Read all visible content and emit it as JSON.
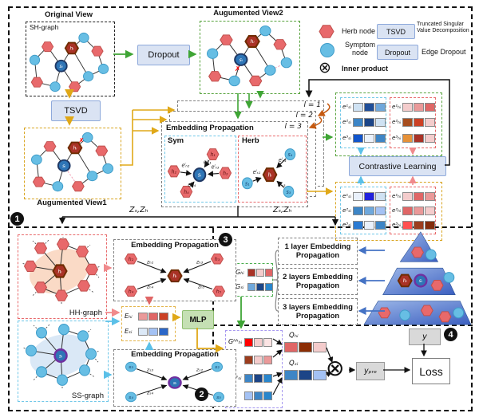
{
  "markers": {
    "s1": "1",
    "s2": "2",
    "s3": "3",
    "s4": "4"
  },
  "nodes": {
    "hi": "hᵢ",
    "si": "sᵢ"
  },
  "top": {
    "original_view": "Original View",
    "sh_graph": "SH-graph",
    "dropout": "Dropout",
    "tsvd": "TSVD",
    "aug_view2": "Augumented View2",
    "aug_view1": "Augumented View1"
  },
  "legend": {
    "herb": "Herb node",
    "symptom": "Symptom node",
    "inner": "Inner product",
    "inner_symbol": "⊗",
    "tsvd": "TSVD",
    "tsvd_desc": "Truncated Singular Value Decomposition",
    "dropout": "Dropout",
    "dropout_desc": "Edge Dropout"
  },
  "prop": {
    "title": "Embedding Propagation",
    "layers": [
      "l = 1",
      "l = 2",
      "l = 3"
    ],
    "sym": {
      "label": "Sym",
      "center": "sᵢ",
      "n": [
        "h₁",
        "h₂",
        "h₃",
        "h₄"
      ],
      "e": [
        "eˡₕ₁",
        "eˡₕ₂",
        "eˡₕ₃",
        "eˡₕ₄"
      ]
    },
    "herb": {
      "label": "Herb",
      "center": "hᵢ",
      "n": [
        "s₄",
        "s₁",
        "s₃"
      ],
      "e": [
        "eˡₛ₄",
        "eˡₛ₁",
        "eˡₛ₃"
      ]
    }
  },
  "cl": {
    "label": "Contrastive Learning",
    "z_left": "Zₛ,Zₕ",
    "z_right": "Zₛ,Zₕ",
    "sym_rows": [
      "e¹ₛᵢ",
      "e²ₛᵢ",
      "e³ₛᵢ"
    ],
    "herb_rows": [
      "e¹ₕᵢ",
      "e²ₕᵢ",
      "e³ₕᵢ"
    ],
    "v2_sym": [
      [
        "#CFE2F3",
        "#1F4E99",
        "#6FA8DC"
      ],
      [
        "#3D85C6",
        "#1C4587",
        "#CFE2F3"
      ],
      [
        "#1155CC",
        "#EAF1FB",
        "#3D85C6"
      ]
    ],
    "v2_herb": [
      [
        "#F4CCCC",
        "#EA9999",
        "#E06666"
      ],
      [
        "#A64D1E",
        "#CC4125",
        "#F4CCCC"
      ],
      [
        "#E69138",
        "#A93226",
        "#F4CCCC"
      ]
    ],
    "v1_sym": [
      [
        "#EAF1FB",
        "#2222DD",
        "#CFE2F3"
      ],
      [
        "#3D85C6",
        "#6FA8DC",
        "#A4C2F4"
      ],
      [
        "#2A7AD2",
        "#EAF1FB",
        "#3D85C6"
      ]
    ],
    "v1_herb": [
      [
        "#F4CCCC",
        "#E06666",
        "#EA9999"
      ],
      [
        "#E06666",
        "#EA9999",
        "#F4CCCC"
      ],
      [
        "#FF5050",
        "#9C3D1E",
        "#842C0C"
      ]
    ]
  },
  "sec1": {
    "hh": "HH-graph",
    "ss": "SS-graph",
    "ep1_title": "Embedding Propagation",
    "ep2_title": "Embedding Propagation",
    "herb_nodes": [
      "h₂",
      "h₃",
      "h₄",
      "h₅"
    ],
    "herb_z": [
      "zₕ₂",
      "zₕ₃",
      "zₕ₄",
      "zₕ₅"
    ],
    "sym_nodes": [
      "s₃",
      "s₂",
      "s₄",
      "s₅"
    ],
    "sym_z": [
      "zₛ₃",
      "zₛ₂",
      "zₛ₄",
      "zₛ₅"
    ],
    "eh": "Eₕᵢ",
    "es": "Eₛᵢ",
    "eh_cells": [
      "#EA9999",
      "#E06666",
      "#CC4125"
    ],
    "es_cells": [
      "#DCE9F7",
      "#A4C2F4",
      "#2A66C8"
    ],
    "mlp": "MLP"
  },
  "sec3": {
    "gh": "Gₕᵢ",
    "gs": "Gₛᵢ",
    "gh_cells": [
      "#A93226",
      "#F4CCCC",
      "#E06666"
    ],
    "gs_cells": [
      "#6FA8DC",
      "#1C4587",
      "#2986CC"
    ],
    "layers": [
      "1 layer Embedding Propagation",
      "2 layers Embedding Propagation",
      "3 layers Embedding Propagation"
    ]
  },
  "sec4": {
    "ghh": "Gʰʰₕᵢ",
    "gh": "Gₕᵢ",
    "gss": "Gˢˢₛᵢ",
    "gs": "Gₛᵢ",
    "ghh_cells": [
      "#FF0000",
      "#F4CCCC",
      "#FBE4E4"
    ],
    "gh_cells": [
      "#9C3D1E",
      "#F4CCCC",
      "#EA9999"
    ],
    "gss_cells": [
      "#3D85C6",
      "#1C4587",
      "#2986CC"
    ],
    "gs_cells": [
      "#A4C2F4",
      "#3D85C6",
      "#2986CC"
    ],
    "qh": "Qₕᵢ",
    "qs": "Qₛᵢ",
    "qh_cells": [
      "#E06666",
      "#8C2D04",
      "#F4CCCC"
    ],
    "qs_cells": [
      "#3D85C6",
      "#1C4587",
      "#A4C2F4"
    ],
    "y": "y",
    "ypre": "yₚᵣₑ",
    "loss": "Loss",
    "otimes": "⊗"
  },
  "colors": {
    "herb_node": "#E8696B",
    "herb_highlight": "#A93226",
    "symptom_node": "#67BEE4",
    "symptom_highlight": "#2E75B6",
    "green_border": "#58A33E",
    "yellow_border": "#D9A521",
    "red_border": "#E8696B",
    "blue_border": "#6FC7E8",
    "purple_border": "#A799F0",
    "button_fill": "#DAE3F3",
    "mlp_fill": "#C5E0B4",
    "pyramid_blue": "#3B5FC0"
  }
}
